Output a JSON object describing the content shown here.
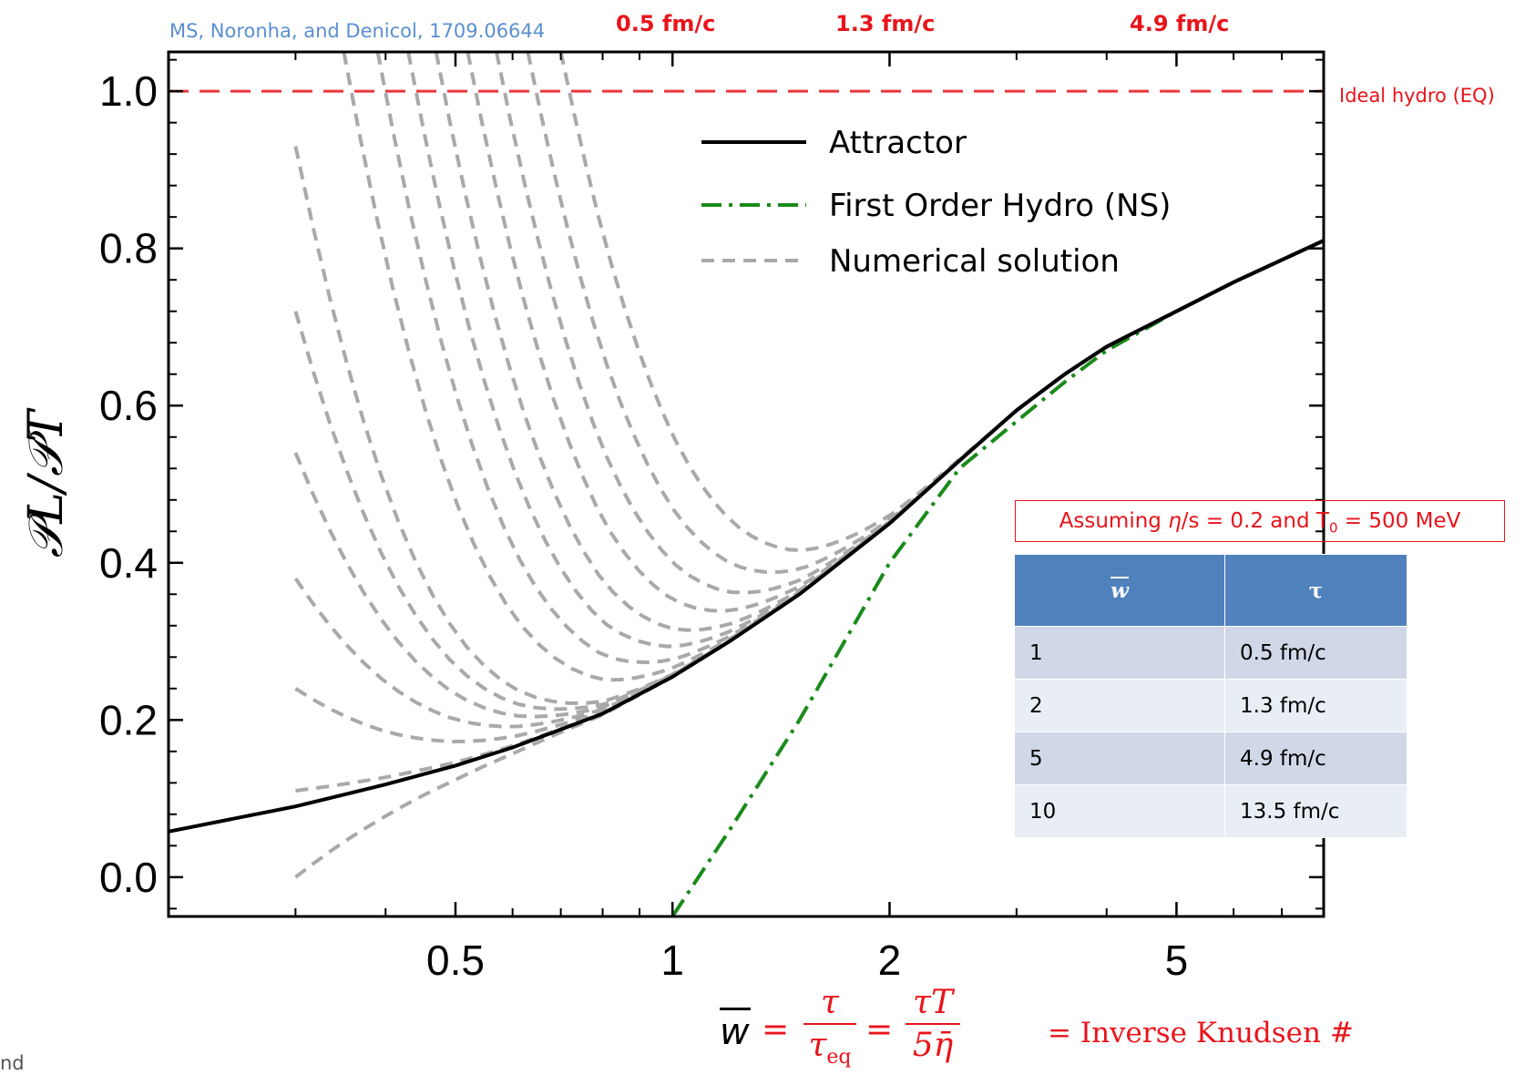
{
  "citation": "MS, Noronha, and Denicol, 1709.06644",
  "top_time_labels": [
    "0.5 fm/c",
    "1.3 fm/c",
    "4.9 fm/c"
  ],
  "ideal_label": "Ideal hydro (EQ)",
  "corner_text": "nd",
  "assumption": {
    "prefix": "Assuming ",
    "eta": "η",
    "middle": "/s = 0.2 and T",
    "sub": "0",
    "suffix": " = 500 MeV"
  },
  "table": {
    "headers": [
      "w",
      "τ"
    ],
    "rows": [
      [
        "1",
        "0.5 fm/c"
      ],
      [
        "2",
        "1.3 fm/c"
      ],
      [
        "5",
        "4.9 fm/c"
      ],
      [
        "10",
        "13.5 fm/c"
      ]
    ]
  },
  "formula": {
    "w": "w",
    "eq": "=",
    "tau": "τ",
    "tau_eq": "τ",
    "tau_eq_sub": "eq",
    "tauT": "τT",
    "five_eta": "5η̄",
    "text": "= Inverse Knudsen #"
  },
  "chart_data": {
    "type": "line",
    "xscale": "log",
    "xlim": [
      0.2,
      8.0
    ],
    "ylim": [
      -0.05,
      1.05
    ],
    "xticks": [
      0.5,
      1,
      2,
      5
    ],
    "xtick_labels": [
      "0.5",
      "1",
      "2",
      "5"
    ],
    "yticks": [
      0.0,
      0.2,
      0.4,
      0.6,
      0.8,
      1.0
    ],
    "ytick_labels": [
      "0.0",
      "0.2",
      "0.4",
      "0.6",
      "0.8",
      "1.0"
    ],
    "ylabel": "𝒫L/𝒫T",
    "legend": [
      "Attractor",
      "First Order Hydro (NS)",
      "Numerical solution"
    ],
    "legend_position": "top-center",
    "ideal_hydro_y": 1.0,
    "series": [
      {
        "name": "Attractor",
        "style": "solid",
        "color": "#000000",
        "x": [
          0.2,
          0.3,
          0.4,
          0.5,
          0.6,
          0.7,
          0.8,
          1.0,
          1.2,
          1.5,
          2.0,
          2.5,
          3.0,
          3.5,
          4.0,
          5.0,
          6.0,
          8.0
        ],
        "y": [
          0.058,
          0.09,
          0.118,
          0.142,
          0.165,
          0.188,
          0.208,
          0.255,
          0.3,
          0.36,
          0.45,
          0.53,
          0.594,
          0.64,
          0.675,
          0.72,
          0.757,
          0.81
        ]
      },
      {
        "name": "First Order Hydro (NS)",
        "style": "dashdot",
        "color": "#1a8a1a",
        "x": [
          1.0,
          1.2,
          1.5,
          2.0,
          2.5,
          3.0,
          3.5,
          4.0,
          5.0,
          6.0,
          8.0
        ],
        "y": [
          -0.05,
          0.06,
          0.2,
          0.4,
          0.52,
          0.58,
          0.63,
          0.67,
          0.72,
          0.757,
          0.81
        ]
      }
    ],
    "numerical_solutions": [
      {
        "x0": 0.3,
        "y0": 0.0
      },
      {
        "x0": 0.3,
        "y0": 0.11
      },
      {
        "x0": 0.3,
        "y0": 0.24
      },
      {
        "x0": 0.3,
        "y0": 0.38
      },
      {
        "x0": 0.3,
        "y0": 0.54
      },
      {
        "x0": 0.3,
        "y0": 0.72
      },
      {
        "x0": 0.3,
        "y0": 0.93
      },
      {
        "x0": 0.35,
        "y0": 1.05
      },
      {
        "x0": 0.39,
        "y0": 1.05
      },
      {
        "x0": 0.43,
        "y0": 1.05
      },
      {
        "x0": 0.47,
        "y0": 1.05
      },
      {
        "x0": 0.52,
        "y0": 1.05
      },
      {
        "x0": 0.57,
        "y0": 1.05
      },
      {
        "x0": 0.63,
        "y0": 1.05
      },
      {
        "x0": 0.7,
        "y0": 1.05
      }
    ]
  }
}
